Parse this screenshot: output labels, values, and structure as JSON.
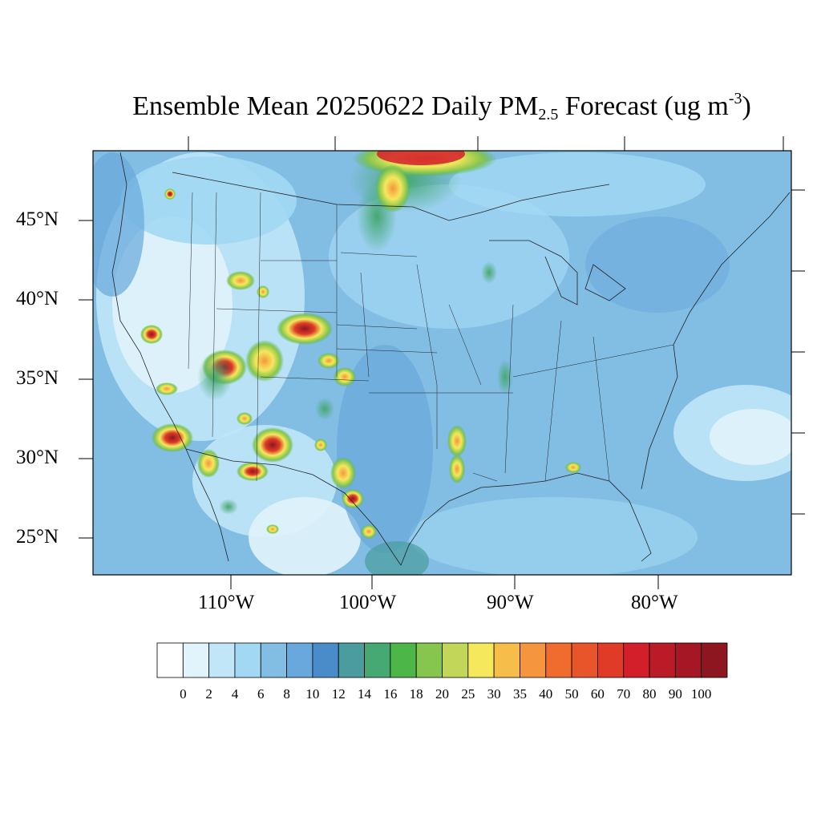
{
  "title": {
    "prefix": "Ensemble Mean 20250622 Daily PM",
    "subscript": "2.5",
    "middle": " Forecast (ug m",
    "superscript": "-3",
    "suffix": ")"
  },
  "lat_labels": [
    "45°N",
    "40°N",
    "35°N",
    "30°N",
    "25°N"
  ],
  "lon_labels": [
    "110°W",
    "100°W",
    "90°W",
    "80°W"
  ],
  "colorbar": {
    "colors": [
      "#ffffff",
      "#e1f3fb",
      "#c0e6f7",
      "#a2d8f3",
      "#82bde4",
      "#68a8dc",
      "#4a8cc9",
      "#4a9c9e",
      "#46a872",
      "#4cb648",
      "#86c54e",
      "#c2d65a",
      "#f5e85c",
      "#f6bd4a",
      "#f5963e",
      "#f06b2e",
      "#e9552b",
      "#df3b27",
      "#d21f2a",
      "#bb1a27",
      "#a51724",
      "#8e1621"
    ],
    "tick_labels": [
      "0",
      "2",
      "4",
      "6",
      "8",
      "10",
      "12",
      "14",
      "16",
      "18",
      "20",
      "25",
      "30",
      "35",
      "40",
      "50",
      "60",
      "70",
      "80",
      "90",
      "100"
    ]
  },
  "plumes": [
    {
      "name": "canada-smoke",
      "color": "#f0b040"
    },
    {
      "name": "nm-fire",
      "color": "#d21f2a"
    }
  ]
}
